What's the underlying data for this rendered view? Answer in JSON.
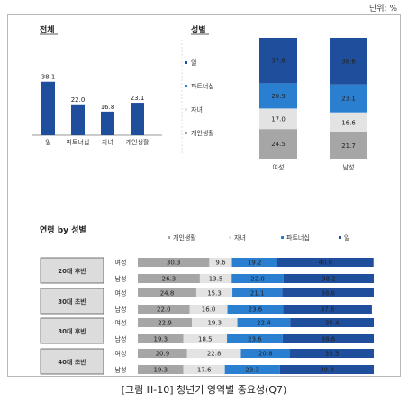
{
  "unit": "단위: %",
  "caption": "[그림 Ⅲ-10] 청년기 영역별 중요성(Q7)",
  "colors": {
    "work": "#1f4e9c",
    "partnership": "#2b7fd0",
    "children": "#e3e3e3",
    "personal": "#a6a6a6",
    "text_dark": "#222222",
    "text_light": "#ffffff"
  },
  "chart_data": [
    {
      "type": "bar",
      "title": "전체",
      "categories": [
        "일",
        "파트너십",
        "자녀",
        "개인생활"
      ],
      "values": [
        38.1,
        22.0,
        16.8,
        23.1
      ],
      "ylim": [
        0,
        45
      ]
    },
    {
      "type": "bar",
      "stacked": true,
      "title": "성별",
      "categories": [
        "여성",
        "남성"
      ],
      "ylim": [
        0,
        100
      ],
      "legend_position": "left",
      "series": [
        {
          "name": "개인생활",
          "key": "personal",
          "values": [
            24.5,
            21.7
          ],
          "labels": [
            "24.5",
            "21.7"
          ]
        },
        {
          "name": "자녀",
          "key": "children",
          "values": [
            17.0,
            16.6
          ],
          "labels": [
            "17.0",
            "16.6"
          ]
        },
        {
          "name": "파트너십",
          "key": "partnership",
          "values": [
            20.9,
            23.1
          ],
          "labels": [
            "20.9",
            "23.1"
          ]
        },
        {
          "name": "일",
          "key": "work",
          "values": [
            37.6,
            38.6
          ],
          "labels": [
            "37.6",
            "38.6"
          ]
        }
      ]
    },
    {
      "type": "bar",
      "stacked": true,
      "orientation": "horizontal",
      "title": "연령 by 성별",
      "legend_position": "top",
      "groups": [
        "20대 후반",
        "30대 초반",
        "30대 후반",
        "40대 초반"
      ],
      "genders": [
        "여성",
        "남성"
      ],
      "series": [
        {
          "name": "개인생활",
          "key": "personal",
          "values": [
            30.3,
            26.3,
            24.8,
            22.0,
            22.9,
            19.3,
            20.9,
            19.3
          ],
          "labels": [
            "30.3",
            "26.3",
            "24.8",
            "22.0",
            "22.9",
            "19.3",
            "20.9",
            "19.3"
          ]
        },
        {
          "name": "자녀",
          "key": "children",
          "values": [
            9.6,
            13.5,
            15.3,
            16.0,
            19.3,
            18.5,
            22.8,
            17.6
          ],
          "labels": [
            "9.6",
            "13.5",
            "15.3",
            "16.0",
            "19.3",
            "18.5",
            "22.8",
            "17.6"
          ]
        },
        {
          "name": "파트너십",
          "key": "partnership",
          "values": [
            19.2,
            22.0,
            21.1,
            23.6,
            22.4,
            23.6,
            20.8,
            23.3
          ],
          "labels": [
            "19.2",
            "22.0",
            "21.1",
            "23.6",
            "22.4",
            "23.6",
            "20.8",
            "23.3"
          ]
        },
        {
          "name": "일",
          "key": "work",
          "values": [
            40.8,
            38.2,
            38.8,
            37.6,
            35.4,
            38.6,
            35.5,
            39.8
          ],
          "labels": [
            "40.8",
            "38.2",
            "38.8",
            "37.6",
            "35.4",
            "38.6",
            "35.5",
            "39.8"
          ]
        }
      ]
    }
  ]
}
